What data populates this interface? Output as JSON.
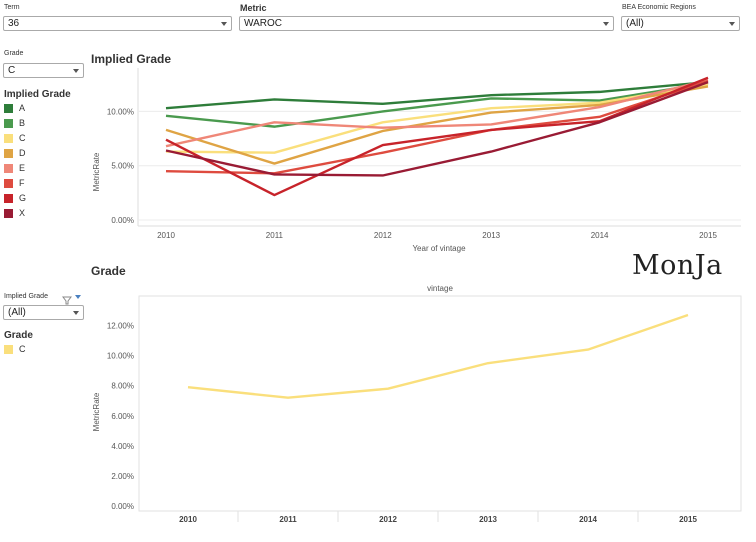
{
  "filters": {
    "term": {
      "label": "Term",
      "value": "36"
    },
    "metric": {
      "label": "Metric",
      "value": "WAROC"
    },
    "region": {
      "label": "BEA Economic Regions",
      "value": "(All)"
    },
    "grade": {
      "label": "Grade",
      "value": "C"
    },
    "implied_grade": {
      "label": "Implied Grade",
      "value": "(All)"
    }
  },
  "legend_top": {
    "title": "Implied Grade",
    "items": [
      {
        "label": "A",
        "color": "#2e7d3a"
      },
      {
        "label": "B",
        "color": "#4a9a4e"
      },
      {
        "label": "C",
        "color": "#fadf7c"
      },
      {
        "label": "D",
        "color": "#dfa444"
      },
      {
        "label": "E",
        "color": "#ef8778"
      },
      {
        "label": "F",
        "color": "#de4b3f"
      },
      {
        "label": "G",
        "color": "#c7232a"
      },
      {
        "label": "X",
        "color": "#991b34"
      }
    ]
  },
  "legend_bottom": {
    "title": "Grade",
    "items": [
      {
        "label": "C",
        "color": "#fadf7c"
      }
    ]
  },
  "logo_text": "MonJa",
  "chart_data": [
    {
      "type": "line",
      "title": "Implied Grade",
      "xlabel": "Year of vintage",
      "ylabel": "MetricRate",
      "x": [
        "2010",
        "2011",
        "2012",
        "2013",
        "2014",
        "2015"
      ],
      "yticks": [
        "0.00%",
        "5.00%",
        "10.00%"
      ],
      "ylim": [
        0,
        14
      ],
      "grid": "horizontal",
      "series": [
        {
          "name": "A",
          "color": "#2e7d3a",
          "values": [
            10.3,
            11.1,
            10.7,
            11.5,
            11.8,
            12.7
          ]
        },
        {
          "name": "B",
          "color": "#4a9a4e",
          "values": [
            9.6,
            8.6,
            10.0,
            11.2,
            11.0,
            12.6
          ]
        },
        {
          "name": "C",
          "color": "#fadf7c",
          "values": [
            6.3,
            6.2,
            9.0,
            10.3,
            10.8,
            12.5
          ]
        },
        {
          "name": "D",
          "color": "#dfa444",
          "values": [
            8.3,
            5.2,
            8.2,
            9.9,
            10.6,
            12.3
          ]
        },
        {
          "name": "E",
          "color": "#ef8778",
          "values": [
            6.8,
            9.0,
            8.5,
            8.8,
            10.4,
            12.9
          ]
        },
        {
          "name": "F",
          "color": "#de4b3f",
          "values": [
            4.5,
            4.3,
            6.2,
            8.3,
            9.5,
            12.8
          ]
        },
        {
          "name": "G",
          "color": "#c7232a",
          "values": [
            7.4,
            2.3,
            6.9,
            8.3,
            9.1,
            13.1
          ]
        },
        {
          "name": "X",
          "color": "#991b34",
          "values": [
            6.4,
            4.2,
            4.1,
            6.3,
            9.0,
            12.7
          ]
        }
      ]
    },
    {
      "type": "line",
      "title": "Grade",
      "subtitle": "vintage",
      "xlabel": "",
      "ylabel": "MetricRate",
      "x": [
        "2010",
        "2011",
        "2012",
        "2013",
        "2014",
        "2015"
      ],
      "yticks": [
        "0.00%",
        "2.00%",
        "4.00%",
        "6.00%",
        "8.00%",
        "10.00%",
        "12.00%"
      ],
      "ylim": [
        0,
        13.3
      ],
      "grid": "none",
      "series": [
        {
          "name": "C",
          "color": "#fadf7c",
          "values": [
            7.9,
            7.2,
            7.8,
            9.5,
            10.4,
            12.7
          ]
        }
      ]
    }
  ]
}
